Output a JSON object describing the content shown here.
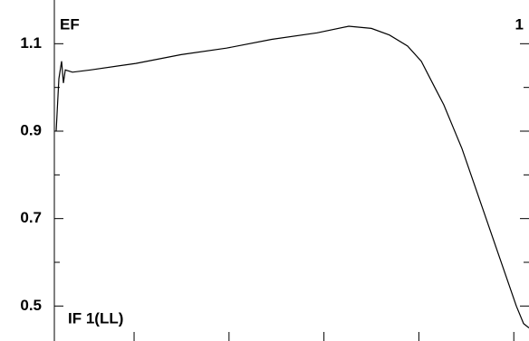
{
  "chart_data": {
    "type": "line",
    "labels": {
      "top_left": "EF",
      "top_right": "1",
      "bottom_left": "IF 1(LL)"
    },
    "x": [
      1.9,
      4.8,
      7.6,
      9.5,
      11.5,
      19.1,
      38.2,
      85.9,
      133.6,
      181.3,
      229,
      276.7,
      310.1,
      334,
      353,
      372,
      386.5,
      400.8,
      410.3,
      419.8,
      429.4,
      438.9,
      448.5,
      458,
      467.6,
      477.1,
      486.6,
      494.3,
      500
    ],
    "series": [
      {
        "color": "#000000",
        "values": [
          0.9,
          1.02,
          1.06,
          1.01,
          1.04,
          1.035,
          1.04,
          1.055,
          1.075,
          1.09,
          1.11,
          1.125,
          1.14,
          1.135,
          1.12,
          1.095,
          1.06,
          1.0,
          0.96,
          0.91,
          0.86,
          0.8,
          0.74,
          0.68,
          0.62,
          0.56,
          0.5,
          0.46,
          0.45
        ]
      }
    ],
    "xlim": [
      0,
      500
    ],
    "xticks": [
      84,
      184,
      284,
      384,
      484
    ],
    "ylim": [
      0.42,
      1.2
    ],
    "yticks": [
      0.5,
      0.7,
      0.9,
      1.1
    ],
    "yminor": [
      0.6,
      0.8,
      1.0
    ]
  }
}
